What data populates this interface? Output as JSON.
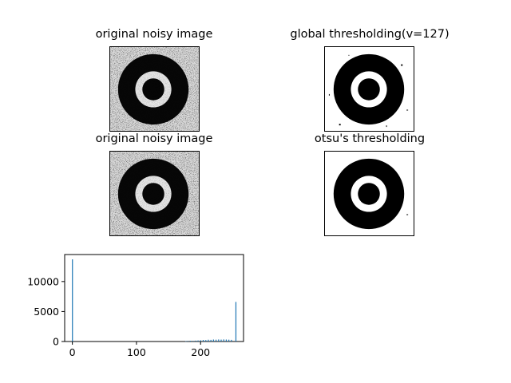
{
  "panels": {
    "noisy_1": {
      "title": "original noisy image"
    },
    "global": {
      "title": "global thresholding(v=127)"
    },
    "noisy_2": {
      "title": "original noisy image"
    },
    "otsu": {
      "title": "otsu's thresholding"
    }
  },
  "chart_data": {
    "type": "bar",
    "title": "",
    "xlabel": "",
    "ylabel": "",
    "xlim": [
      -12,
      267
    ],
    "ylim": [
      0,
      14500
    ],
    "xticks": [
      0,
      100,
      200
    ],
    "yticks": [
      0,
      5000,
      10000
    ],
    "bar_color": "#1f77b4",
    "series": [
      {
        "values": [
          {
            "x": 0,
            "y": 13700
          },
          {
            "x": 177,
            "y": 60
          },
          {
            "x": 180,
            "y": 90
          },
          {
            "x": 184,
            "y": 120
          },
          {
            "x": 188,
            "y": 110
          },
          {
            "x": 192,
            "y": 150
          },
          {
            "x": 196,
            "y": 180
          },
          {
            "x": 200,
            "y": 210
          },
          {
            "x": 204,
            "y": 260
          },
          {
            "x": 208,
            "y": 240
          },
          {
            "x": 212,
            "y": 300
          },
          {
            "x": 216,
            "y": 280
          },
          {
            "x": 220,
            "y": 330
          },
          {
            "x": 224,
            "y": 310
          },
          {
            "x": 228,
            "y": 340
          },
          {
            "x": 232,
            "y": 320
          },
          {
            "x": 236,
            "y": 350
          },
          {
            "x": 240,
            "y": 330
          },
          {
            "x": 244,
            "y": 310
          },
          {
            "x": 248,
            "y": 280
          },
          {
            "x": 255,
            "y": 6600
          }
        ]
      }
    ]
  }
}
